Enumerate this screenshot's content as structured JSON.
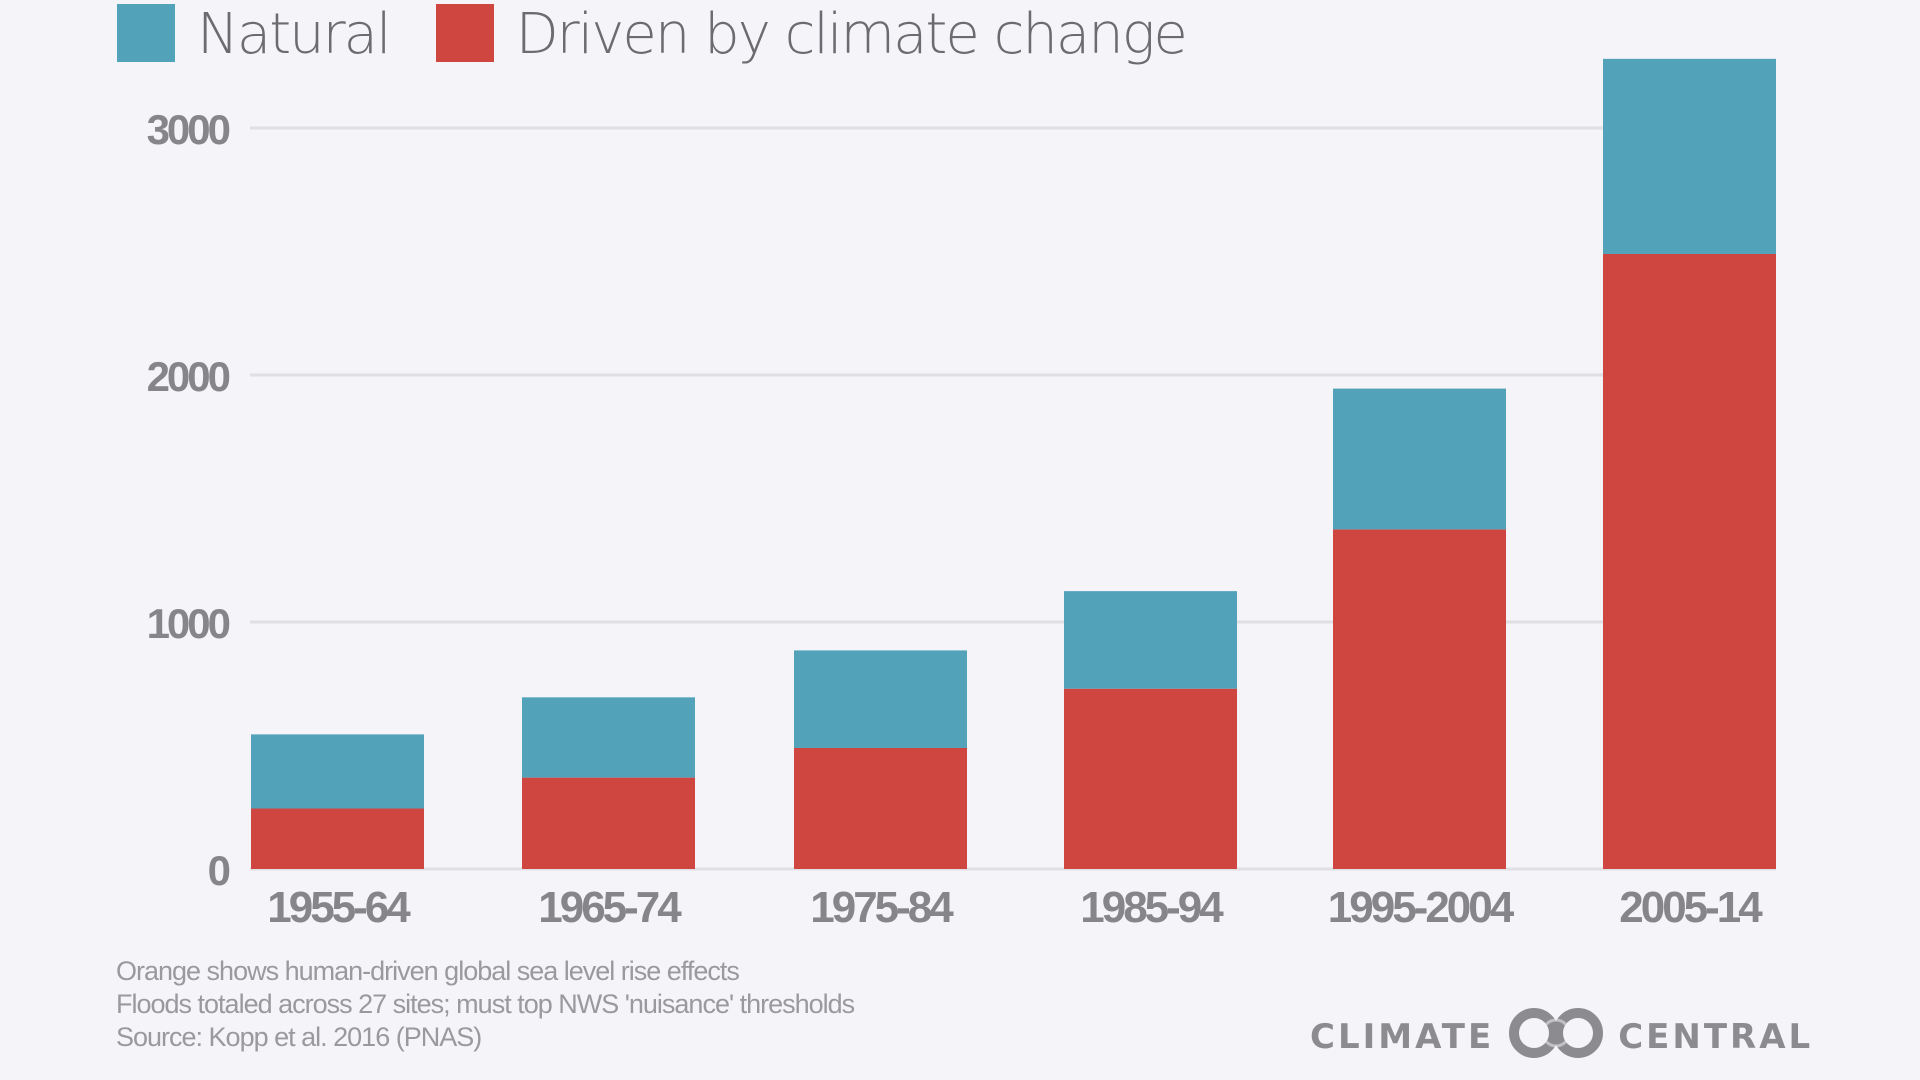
{
  "legend": {
    "items": [
      {
        "label": "Natural",
        "color": "#52a2ba"
      },
      {
        "label": "Driven by climate change",
        "color": "#cf4641"
      }
    ]
  },
  "chart_data": {
    "type": "bar",
    "stacked": true,
    "title": "",
    "xlabel": "",
    "ylabel": "",
    "categories": [
      "1955-64",
      "1965-74",
      "1975-84",
      "1985-94",
      "1995-2004",
      "2005-14"
    ],
    "series": [
      {
        "name": "Driven by climate change",
        "color": "#cf4641",
        "values": [
          245,
          370,
          490,
          730,
          1375,
          2490
        ]
      },
      {
        "name": "Natural",
        "color": "#52a2ba",
        "values": [
          300,
          325,
          395,
          395,
          570,
          790
        ]
      }
    ],
    "totals": [
      545,
      695,
      885,
      1125,
      1945,
      3280
    ],
    "yticks": [
      0,
      1000,
      2000,
      3000
    ],
    "ytick_labels": [
      "0",
      "1000",
      "2000",
      "3000"
    ],
    "ylim": [
      0,
      3300
    ],
    "grid": true,
    "legend_position": "top-left"
  },
  "notes": [
    "Orange shows human-driven global sea level rise effects",
    "Floods totaled across 27 sites; must top NWS 'nuisance' thresholds",
    "Source: Kopp et al. 2016 (PNAS)"
  ],
  "brand": {
    "left": "CLIMATE",
    "right": "CENTRAL",
    "logo_icon": "interlocking-rings-icon"
  }
}
